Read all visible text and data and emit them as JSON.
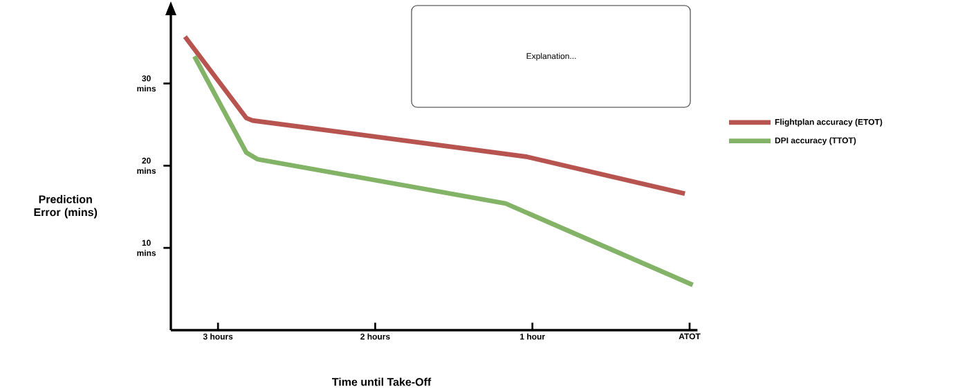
{
  "chart_data": {
    "type": "line",
    "xlabel": "Time until Take-Off",
    "ylabel": "Prediction Error (mins)",
    "xlim": [
      3.3,
      -0.05
    ],
    "ylim": [
      0,
      38.5
    ],
    "xticks": [
      {
        "value": 3,
        "label": "3 hours"
      },
      {
        "value": 2,
        "label": "2 hours"
      },
      {
        "value": 1,
        "label": "1 hour"
      },
      {
        "value": 0,
        "label": "ATOT"
      }
    ],
    "yticks": [
      {
        "value": 10,
        "label": "10 mins"
      },
      {
        "value": 20,
        "label": "20 mins"
      },
      {
        "value": 30,
        "label": "30 mins"
      }
    ],
    "series": [
      {
        "name": "Flightplan accuracy (ETOT)",
        "color": "#b85450",
        "x": [
          3.21,
          2.82,
          2.78,
          1.04,
          0.03
        ],
        "values": [
          35.7,
          25.8,
          25.5,
          21.1,
          16.6
        ]
      },
      {
        "name": "DPI accuracy (TTOT)",
        "color": "#82b366",
        "x": [
          3.15,
          2.82,
          2.75,
          1.17,
          -0.02
        ],
        "values": [
          33.3,
          21.6,
          20.8,
          15.4,
          5.5
        ]
      }
    ],
    "annotations": [
      "Explanation..."
    ],
    "grid": false,
    "legend": "right",
    "marker": "none",
    "line_style": "solid"
  }
}
